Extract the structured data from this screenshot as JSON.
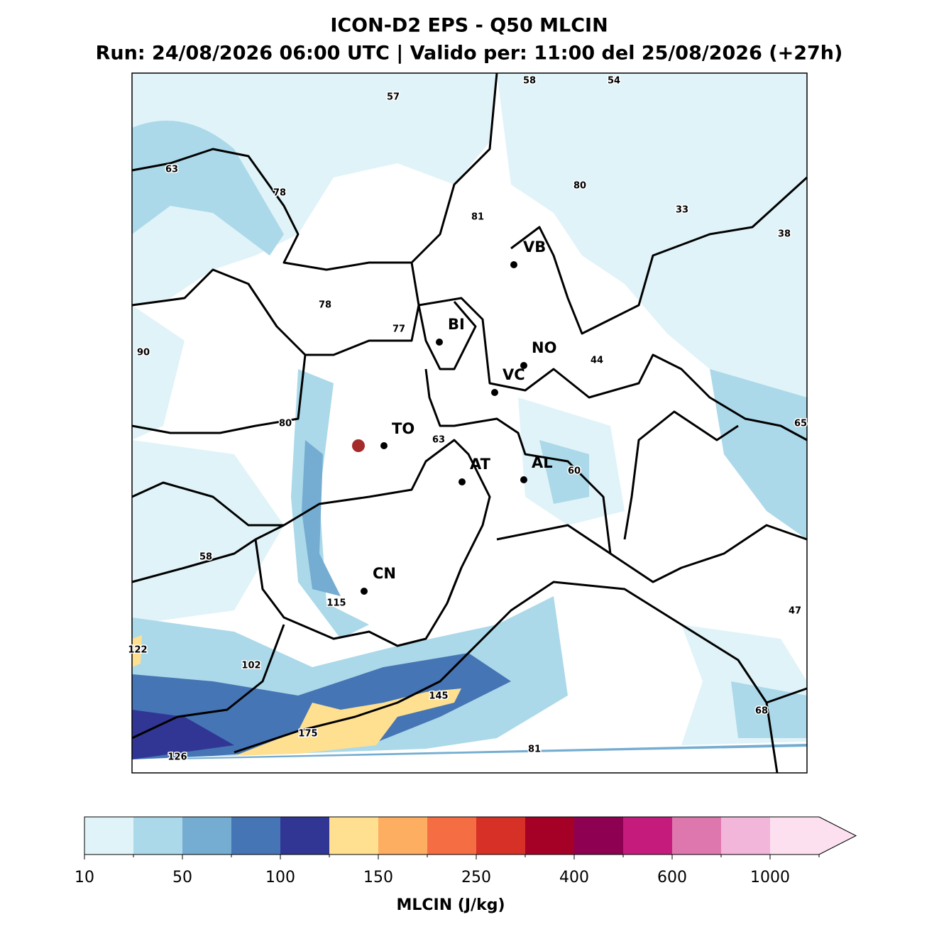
{
  "header": {
    "title": "ICON-D2 EPS - Q50 MLCIN",
    "subtitle": "Run: 24/08/2026 06:00 UTC | Valido per: 11:00 del 25/08/2026 (+27h)"
  },
  "map": {
    "cities": [
      "VB",
      "BI",
      "NO",
      "VC",
      "TO",
      "AT",
      "AL",
      "CN"
    ],
    "values": [
      57,
      58,
      54,
      63,
      78,
      80,
      81,
      33,
      38,
      78,
      77,
      90,
      44,
      80,
      63,
      65,
      60,
      58,
      47,
      115,
      122,
      102,
      145,
      68,
      175,
      81,
      126
    ]
  },
  "colorbar": {
    "colors": [
      "#e0f3f8",
      "#abd9e9",
      "#74add1",
      "#4575b4",
      "#313695",
      "#fee090",
      "#fdae61",
      "#f46d43",
      "#d73027",
      "#a50026",
      "#8e0152",
      "#c51b7d",
      "#de77ae",
      "#f1b6da",
      "#fde0ef"
    ],
    "ticks": [
      10,
      50,
      100,
      150,
      250,
      400,
      600,
      1000
    ],
    "label": "MLCIN (J/kg)"
  }
}
